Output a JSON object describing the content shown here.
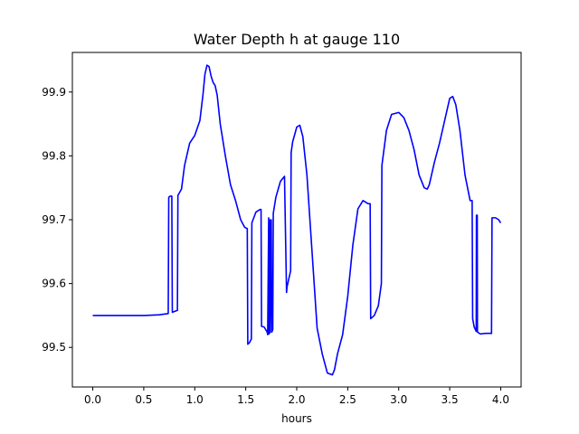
{
  "chart_data": {
    "type": "line",
    "title": "Water Depth h at gauge 110",
    "xlabel": "hours",
    "ylabel": "",
    "xlim": [
      -0.2,
      4.2
    ],
    "ylim": [
      99.438,
      99.962
    ],
    "xticks": [
      0.0,
      0.5,
      1.0,
      1.5,
      2.0,
      2.5,
      3.0,
      3.5,
      4.0
    ],
    "xtick_labels": [
      "0.0",
      "0.5",
      "1.0",
      "1.5",
      "2.0",
      "2.5",
      "3.0",
      "3.5",
      "4.0"
    ],
    "yticks": [
      99.5,
      99.6,
      99.7,
      99.8,
      99.9
    ],
    "ytick_labels": [
      "99.5",
      "99.6",
      "99.7",
      "99.8",
      "99.9"
    ],
    "grid": false,
    "series": [
      {
        "color": "#0000ff",
        "x": [
          0.0,
          0.2,
          0.35,
          0.5,
          0.65,
          0.74,
          0.745,
          0.76,
          0.775,
          0.78,
          0.83,
          0.835,
          0.87,
          0.9,
          0.95,
          1.0,
          1.05,
          1.08,
          1.1,
          1.12,
          1.14,
          1.16,
          1.18,
          1.2,
          1.22,
          1.25,
          1.3,
          1.35,
          1.4,
          1.45,
          1.49,
          1.515,
          1.52,
          1.535,
          1.555,
          1.56,
          1.6,
          1.64,
          1.65,
          1.655,
          1.68,
          1.71,
          1.715,
          1.725,
          1.728,
          1.735,
          1.738,
          1.75,
          1.755,
          1.765,
          1.77,
          1.79,
          1.795,
          1.84,
          1.88,
          1.9,
          1.905,
          1.94,
          1.945,
          1.96,
          2.0,
          2.03,
          2.06,
          2.1,
          2.15,
          2.2,
          2.25,
          2.3,
          2.35,
          2.37,
          2.4,
          2.45,
          2.5,
          2.55,
          2.6,
          2.65,
          2.7,
          2.72,
          2.725,
          2.76,
          2.8,
          2.83,
          2.835,
          2.88,
          2.93,
          3.0,
          3.05,
          3.1,
          3.15,
          3.2,
          3.25,
          3.28,
          3.3,
          3.35,
          3.4,
          3.45,
          3.5,
          3.53,
          3.56,
          3.6,
          3.65,
          3.7,
          3.72,
          3.725,
          3.74,
          3.76,
          3.762,
          3.77,
          3.772,
          3.8,
          3.85,
          3.9,
          3.91,
          3.915,
          3.95,
          3.98,
          4.0
        ],
        "values": [
          99.55,
          99.55,
          99.55,
          99.55,
          99.551,
          99.553,
          99.735,
          99.737,
          99.737,
          99.555,
          99.558,
          99.738,
          99.748,
          99.785,
          99.82,
          99.832,
          99.855,
          99.895,
          99.928,
          99.942,
          99.94,
          99.925,
          99.915,
          99.91,
          99.895,
          99.85,
          99.8,
          99.755,
          99.73,
          99.7,
          99.688,
          99.686,
          99.505,
          99.507,
          99.513,
          99.695,
          99.712,
          99.716,
          99.716,
          99.533,
          99.532,
          99.524,
          99.52,
          99.703,
          99.521,
          99.7,
          99.523,
          99.7,
          99.524,
          99.528,
          99.71,
          99.73,
          99.735,
          99.76,
          99.768,
          99.586,
          99.595,
          99.62,
          99.805,
          99.822,
          99.845,
          99.848,
          99.83,
          99.77,
          99.65,
          99.53,
          99.49,
          99.46,
          99.457,
          99.465,
          99.49,
          99.52,
          99.58,
          99.66,
          99.717,
          99.73,
          99.725,
          99.725,
          99.545,
          99.55,
          99.565,
          99.6,
          99.785,
          99.84,
          99.865,
          99.868,
          99.86,
          99.84,
          99.81,
          99.77,
          99.75,
          99.748,
          99.755,
          99.79,
          99.82,
          99.855,
          99.89,
          99.893,
          99.88,
          99.84,
          99.77,
          99.73,
          99.73,
          99.545,
          99.532,
          99.525,
          99.707,
          99.707,
          99.524,
          99.521,
          99.522,
          99.522,
          99.522,
          99.703,
          99.703,
          99.7,
          99.695
        ]
      }
    ]
  }
}
